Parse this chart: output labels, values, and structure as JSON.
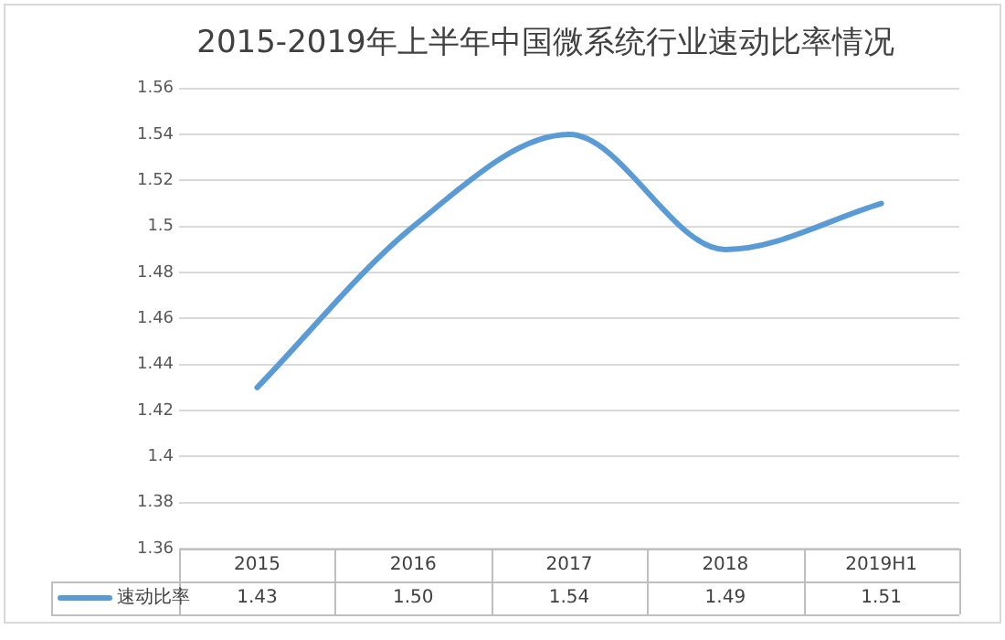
{
  "chart_data": {
    "type": "line",
    "title": "2015-2019年上半年中国微系统行业速动比率情况",
    "categories": [
      "2015",
      "2016",
      "2017",
      "2018",
      "2019H1"
    ],
    "series": [
      {
        "name": "速动比率",
        "color": "#5b9bd5",
        "values": [
          1.43,
          1.5,
          1.54,
          1.49,
          1.51
        ],
        "value_labels": [
          "1.43",
          "1.50",
          "1.54",
          "1.49",
          "1.51"
        ]
      }
    ],
    "ylim": [
      1.36,
      1.56
    ],
    "yticks": [
      1.36,
      1.38,
      1.4,
      1.42,
      1.44,
      1.46,
      1.48,
      1.5,
      1.52,
      1.54,
      1.56
    ],
    "grid": "y",
    "legend": "bottom",
    "marker": "none",
    "line_style": "solid"
  }
}
